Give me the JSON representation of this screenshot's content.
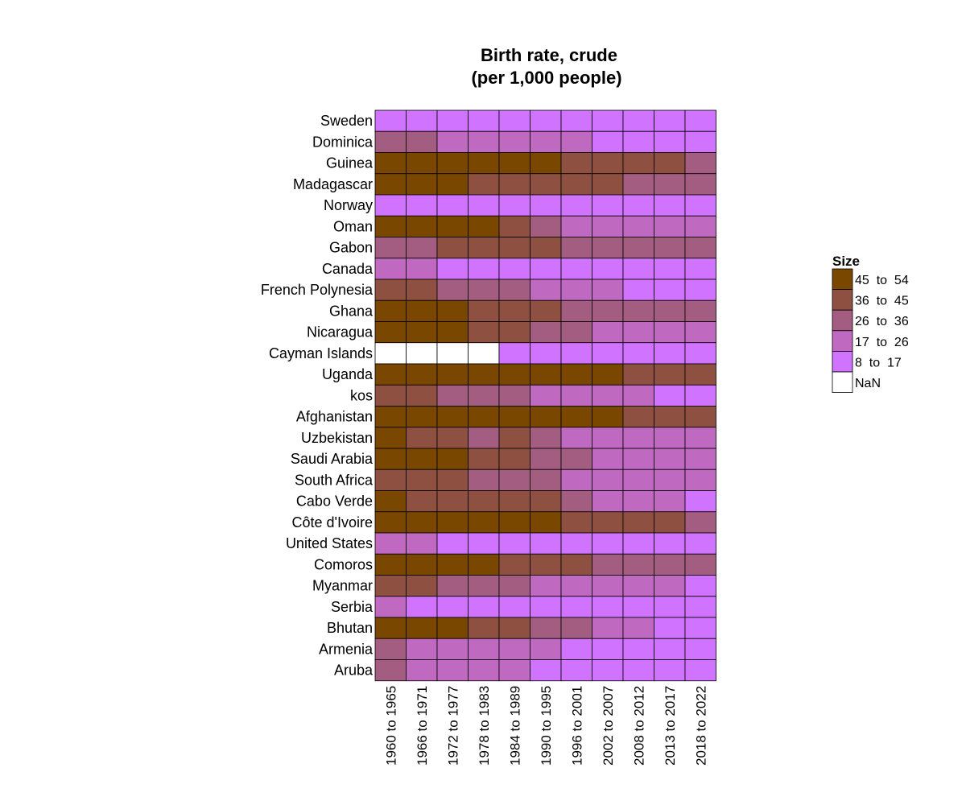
{
  "chart_data": {
    "type": "heatmap",
    "title": "Birth rate, crude",
    "subtitle": "(per 1,000 people)",
    "columns": [
      "1960 to 1965",
      "1966 to 1971",
      "1972 to 1977",
      "1978 to 1983",
      "1984 to 1989",
      "1990 to 1995",
      "1996 to 2001",
      "2002 to 2007",
      "2008 to 2012",
      "2013 to 2017",
      "2018 to 2022"
    ],
    "rows": [
      "Sweden",
      "Dominica",
      "Guinea",
      "Madagascar",
      "Norway",
      "Oman",
      "Gabon",
      "Canada",
      "French Polynesia",
      "Ghana",
      "Nicaragua",
      "Cayman Islands",
      "Uganda",
      "kos",
      "Afghanistan",
      "Uzbekistan",
      "Saudi Arabia",
      "South Africa",
      "Cabo Verde",
      "Côte d'Ivoire",
      "United States",
      "Comoros",
      "Myanmar",
      "Serbia",
      "Bhutan",
      "Armenia",
      "Aruba"
    ],
    "legend": {
      "title": "Size",
      "position": "right",
      "bins": [
        {
          "label": "45  to  54",
          "color": "#7a4700"
        },
        {
          "label": "36  to  45",
          "color": "#8e5040"
        },
        {
          "label": "26  to  36",
          "color": "#a35d80"
        },
        {
          "label": "17  to  26",
          "color": "#bf69c0"
        },
        {
          "label": "8  to  17",
          "color": "#d073ff"
        },
        {
          "label": "NaN",
          "color": "#ffffff"
        }
      ]
    },
    "bins_by_cell": [
      [
        4,
        4,
        4,
        4,
        4,
        4,
        4,
        4,
        4,
        4,
        4
      ],
      [
        2,
        2,
        3,
        3,
        3,
        3,
        3,
        4,
        4,
        4,
        4
      ],
      [
        0,
        0,
        0,
        0,
        0,
        0,
        1,
        1,
        1,
        1,
        2
      ],
      [
        0,
        0,
        0,
        1,
        1,
        1,
        1,
        1,
        2,
        2,
        2
      ],
      [
        4,
        4,
        4,
        4,
        4,
        4,
        4,
        4,
        4,
        4,
        4
      ],
      [
        0,
        0,
        0,
        0,
        1,
        2,
        3,
        3,
        3,
        3,
        3
      ],
      [
        2,
        2,
        1,
        1,
        1,
        1,
        2,
        2,
        2,
        2,
        2
      ],
      [
        3,
        3,
        4,
        4,
        4,
        4,
        4,
        4,
        4,
        4,
        4
      ],
      [
        1,
        1,
        2,
        2,
        2,
        3,
        3,
        3,
        4,
        4,
        4
      ],
      [
        0,
        0,
        0,
        1,
        1,
        1,
        2,
        2,
        2,
        2,
        2
      ],
      [
        0,
        0,
        0,
        1,
        1,
        2,
        2,
        3,
        3,
        3,
        3
      ],
      [
        5,
        5,
        5,
        5,
        4,
        4,
        4,
        4,
        4,
        4,
        4
      ],
      [
        0,
        0,
        0,
        0,
        0,
        0,
        0,
        0,
        1,
        1,
        1
      ],
      [
        1,
        1,
        2,
        2,
        2,
        3,
        3,
        3,
        3,
        4,
        4
      ],
      [
        0,
        0,
        0,
        0,
        0,
        0,
        0,
        0,
        1,
        1,
        1
      ],
      [
        0,
        1,
        1,
        2,
        1,
        2,
        3,
        3,
        3,
        3,
        3
      ],
      [
        0,
        0,
        0,
        1,
        1,
        2,
        2,
        3,
        3,
        3,
        3
      ],
      [
        1,
        1,
        1,
        2,
        2,
        2,
        3,
        3,
        3,
        3,
        3
      ],
      [
        0,
        1,
        1,
        1,
        1,
        1,
        2,
        3,
        3,
        3,
        4
      ],
      [
        0,
        0,
        0,
        0,
        0,
        0,
        1,
        1,
        1,
        1,
        2
      ],
      [
        3,
        3,
        4,
        4,
        4,
        4,
        4,
        4,
        4,
        4,
        4
      ],
      [
        0,
        0,
        0,
        0,
        1,
        1,
        1,
        2,
        2,
        2,
        2
      ],
      [
        1,
        1,
        2,
        2,
        2,
        3,
        3,
        3,
        3,
        3,
        4
      ],
      [
        3,
        4,
        4,
        4,
        4,
        4,
        4,
        4,
        4,
        4,
        4
      ],
      [
        0,
        0,
        0,
        1,
        1,
        2,
        2,
        3,
        3,
        4,
        4
      ],
      [
        2,
        3,
        3,
        3,
        3,
        3,
        4,
        4,
        4,
        4,
        4
      ],
      [
        2,
        3,
        3,
        3,
        3,
        4,
        4,
        4,
        4,
        4,
        4
      ]
    ]
  }
}
